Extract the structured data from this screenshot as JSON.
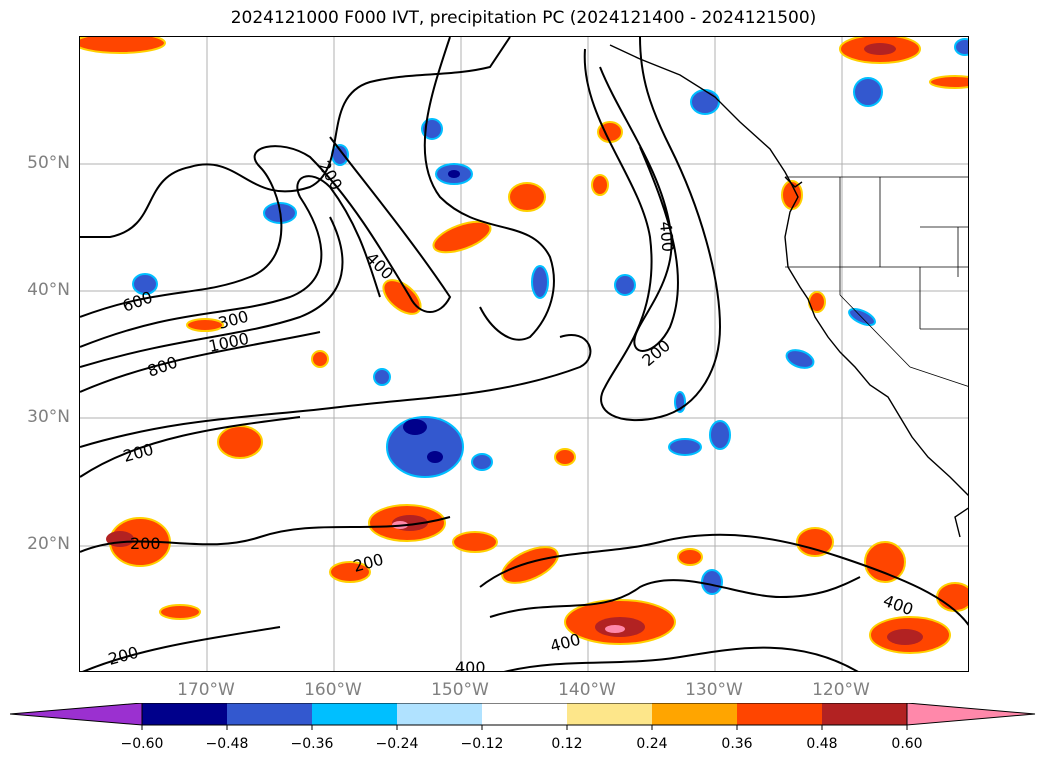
{
  "title": "2024121000 F000 IVT, precipitation PC (2024121400 - 2024121500)",
  "map": {
    "lat_labels": [
      "50°N",
      "40°N",
      "30°N",
      "20°N"
    ],
    "lon_labels": [
      "170°W",
      "160°W",
      "150°W",
      "140°W",
      "130°W",
      "120°W"
    ],
    "ivt_contour_labels": [
      "200",
      "400",
      "600",
      "300",
      "1000",
      "800",
      "400",
      "200",
      "200",
      "200",
      "200",
      "400",
      "400",
      "400",
      "200"
    ]
  },
  "colorbar": {
    "tick_labels": [
      "−0.60",
      "−0.48",
      "−0.36",
      "−0.24",
      "−0.12",
      "0.12",
      "0.24",
      "0.36",
      "0.48",
      "0.60"
    ],
    "colors": [
      "#9b30d0",
      "#00008b",
      "#3358cf",
      "#00bfff",
      "#b0e2ff",
      "#ffffff",
      "#fde68a",
      "#ffa500",
      "#ff4500",
      "#b22222",
      "#ff88aa"
    ]
  }
}
